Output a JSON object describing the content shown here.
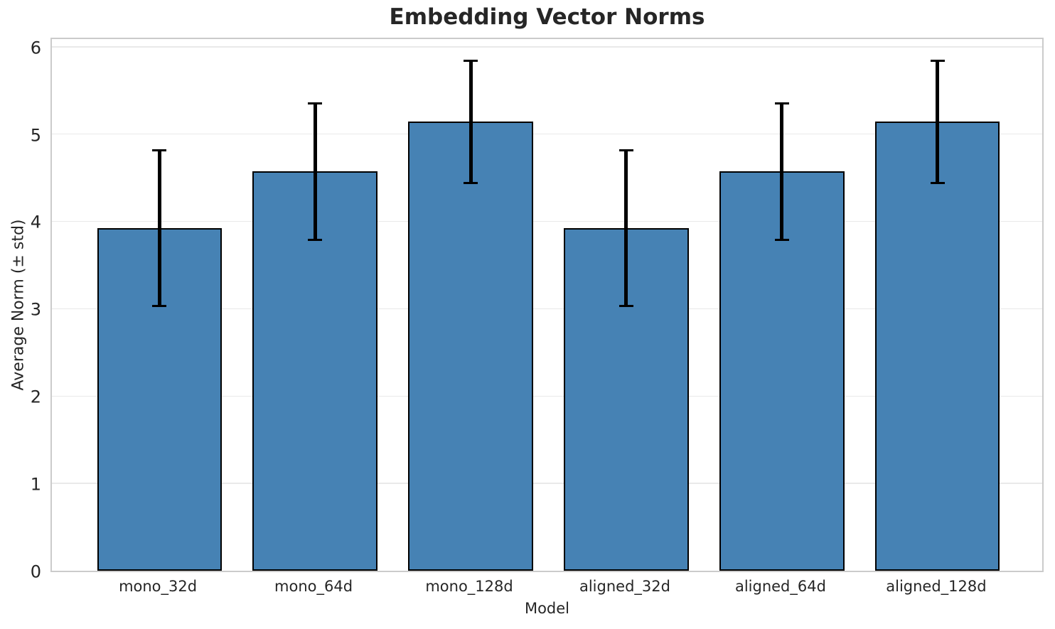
{
  "chart_data": {
    "type": "bar",
    "title": "Embedding Vector Norms",
    "xlabel": "Model",
    "ylabel": "Average Norm (± std)",
    "categories": [
      "mono_32d",
      "mono_64d",
      "mono_128d",
      "aligned_32d",
      "aligned_64d",
      "aligned_128d"
    ],
    "values": [
      3.92,
      4.57,
      5.14,
      3.92,
      4.57,
      5.14
    ],
    "errors": [
      0.89,
      0.78,
      0.7,
      0.89,
      0.78,
      0.7
    ],
    "ylim": [
      0,
      6.12
    ],
    "yticks": [
      0,
      1,
      2,
      3,
      4,
      5,
      6
    ],
    "xlim": [
      -0.69,
      5.69
    ],
    "bar_width": 0.8,
    "grid": "horizontal",
    "legend": null,
    "colors": {
      "bar_fill": "#4682B4",
      "bar_edge": "#000000",
      "error_bar": "#000000",
      "gridline": "#e9e9e9",
      "spine": "#cbcbcb",
      "text": "#262626",
      "background": "#ffffff"
    }
  }
}
